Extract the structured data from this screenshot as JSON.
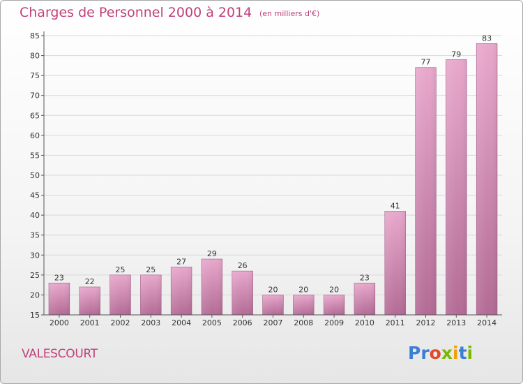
{
  "header": {
    "title": "Charges de Personnel 2000 à 2014",
    "subtitle": "(en milliers d'€)"
  },
  "footer": {
    "commune": "VALESCOURT",
    "logo_text": "Proxiti",
    "logo_colors": [
      "#3b7fd4",
      "#3b7fd4",
      "#e04a2a",
      "#7ab800",
      "#f0a000",
      "#3b7fd4",
      "#7ab800"
    ]
  },
  "colors": {
    "bar_top": "#e8a8cc",
    "bar_bottom": "#b36b95",
    "accent": "#c0407a",
    "grid": "#d8d8d8"
  },
  "chart_data": {
    "type": "bar",
    "title": "Charges de Personnel 2000 à 2014",
    "subtitle": "(en milliers d'€)",
    "categories": [
      "2000",
      "2001",
      "2002",
      "2003",
      "2004",
      "2005",
      "2006",
      "2007",
      "2008",
      "2009",
      "2010",
      "2011",
      "2012",
      "2013",
      "2014"
    ],
    "values": [
      23,
      22,
      25,
      25,
      27,
      29,
      26,
      20,
      20,
      20,
      23,
      41,
      77,
      79,
      83
    ],
    "ylim": [
      15,
      85
    ],
    "yticks": [
      15,
      20,
      25,
      30,
      35,
      40,
      45,
      50,
      55,
      60,
      65,
      70,
      75,
      80,
      85
    ],
    "grid": true,
    "data_labels": true
  }
}
